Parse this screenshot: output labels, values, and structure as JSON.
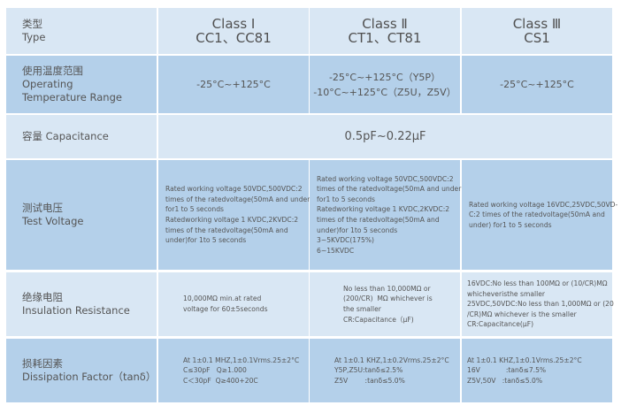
{
  "header": {
    "label_cn": "类型",
    "label_en": "Type",
    "classes": [
      {
        "name": "Class Ⅰ",
        "types": "CC1、CC81"
      },
      {
        "name": "Class Ⅱ",
        "types": "CT1、CT81"
      },
      {
        "name": "Class Ⅲ",
        "types": "CS1"
      }
    ]
  },
  "temperature": {
    "label_cn": "使用温度范围",
    "label_en1": "Operating",
    "label_en2": "Temperature Range",
    "values": [
      [
        "-25°C~+125°C"
      ],
      [
        "-25°C~+125°C（Y5P）",
        "-10°C~+125°C（Z5U，Z5V）"
      ],
      [
        "-25°C~+125°C"
      ]
    ]
  },
  "capacitance": {
    "label": "容量 Capacitance",
    "value": "0.5pF~0.22μF"
  },
  "test_voltage": {
    "label_cn": "测试电压",
    "label_en": "Test Voltage",
    "values": [
      [
        "Rated working voltage 50VDC,500VDC:2",
        "times of the ratedvoltage(50mA and under)",
        "for1 to 5 seconds",
        "Ratedworking voltage 1 KVDC,2KVDC:2",
        "times of the ratedvoltage(50mA and",
        "under)for 1to 5 seconds"
      ],
      [
        "Rated working voltage 50VDC,500VDC:2",
        "times of the ratedvoltage(50mA and under)",
        "for1 to 5 seconds",
        "Ratedworking voltage 1 KVDC,2KVDC:2",
        "times of the ratedvoltage(50mA and",
        "under)for 1to 5 seconds",
        "3~5KVDC(175%)",
        "6~15KVDC"
      ],
      [
        "Rated working voltage 16VDC,25VDC,50VD-",
        "C:2 times of the ratedvoltage(50mA and",
        "under) for1 to 5 seconds"
      ]
    ]
  },
  "insulation": {
    "label_cn": "绝缘电阻",
    "label_en": "Insulation Resistance",
    "values": [
      [
        "10,000MΩ min.at rated",
        "voltage for 60±5seconds"
      ],
      [
        "No less than 10,000MΩ or",
        "(200/CR)  MΩ whichever is",
        "the smaller",
        "CR:Capacitance（μF)"
      ],
      [
        "16VDC:No less than 100MΩ or (10/CR)MΩ",
        "whicheveristhe smaller",
        "25VDC,50VDC:No less than 1,000MΩ or (20",
        "/CR)MΩ whichever is the smaller",
        "CR:Capacitance(μF)"
      ]
    ]
  },
  "dissipation": {
    "label_cn": "损耗因素",
    "label_en": "Dissipation Factor（tanδ）",
    "values": [
      [
        "At 1±0.1 MHZ,1±0.1Vrms.25±2°C",
        "C≤30pF   Q≥1.000",
        "C＜30pF  Q≥400+20C"
      ],
      [
        "At 1±0.1 KHZ,1±0.2Vrms.25±2°C",
        "Y5P,Z5U:tanδ≤2.5%",
        "Z5V        :tanδ≤5.0%"
      ],
      [
        "At 1±0.1 KHZ,1±0.1Vrms.25±2°C",
        "16V            :tanδ≤7.5%",
        "Z5V,50V   :tanδ≤5.0%"
      ]
    ]
  },
  "colors": {
    "row_light": "#d9e7f4",
    "row_dark": "#b4d0ea",
    "text": "#555555"
  }
}
